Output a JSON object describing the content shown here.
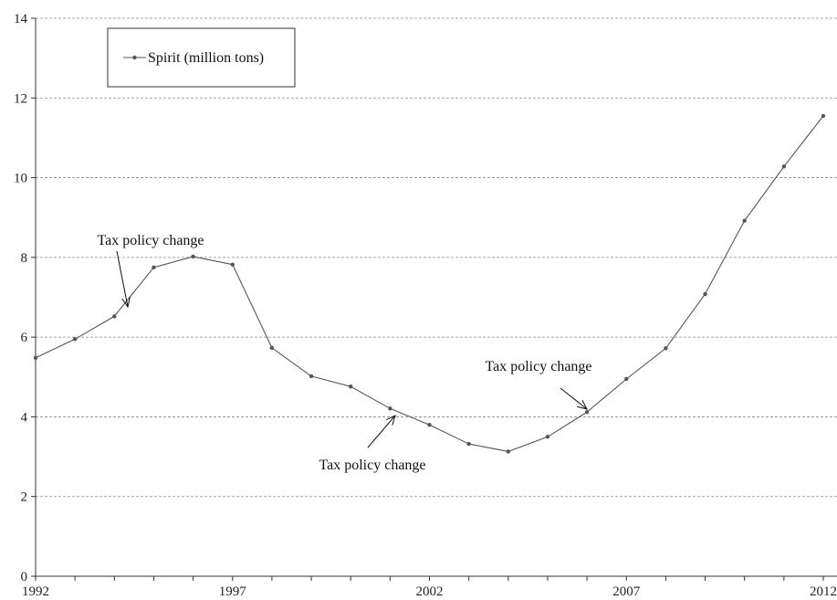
{
  "chart_data": {
    "type": "line",
    "title": "",
    "xlabel": "",
    "ylabel": "",
    "xlim": [
      1992,
      2012
    ],
    "ylim": [
      0,
      14
    ],
    "x_tick_labels": [
      "1992",
      "1997",
      "2002",
      "2007",
      "2012"
    ],
    "y_tick_labels": [
      "0",
      "2",
      "4",
      "6",
      "8",
      "10",
      "12",
      "14"
    ],
    "grid": "horizontal dashed",
    "legend_position": "top-left",
    "series": [
      {
        "name": "Spirit (million tons)",
        "color": "#555555",
        "x": [
          1992,
          1993,
          1994,
          1995,
          1996,
          1997,
          1998,
          1999,
          2000,
          2001,
          2002,
          2003,
          2004,
          2005,
          2006,
          2007,
          2008,
          2009,
          2010,
          2011,
          2012
        ],
        "y": [
          5.48,
          5.95,
          6.52,
          7.75,
          8.02,
          7.82,
          5.73,
          5.02,
          4.76,
          4.21,
          3.8,
          3.32,
          3.13,
          3.5,
          4.12,
          4.95,
          5.72,
          7.08,
          8.92,
          10.28,
          11.55
        ]
      }
    ],
    "annotations": [
      {
        "text": "Tax policy change",
        "x": 1994,
        "y": 6.52
      },
      {
        "text": "Tax policy change",
        "x": 2001,
        "y": 4.21
      },
      {
        "text": "Tax policy change",
        "x": 2006,
        "y": 4.12
      }
    ]
  }
}
